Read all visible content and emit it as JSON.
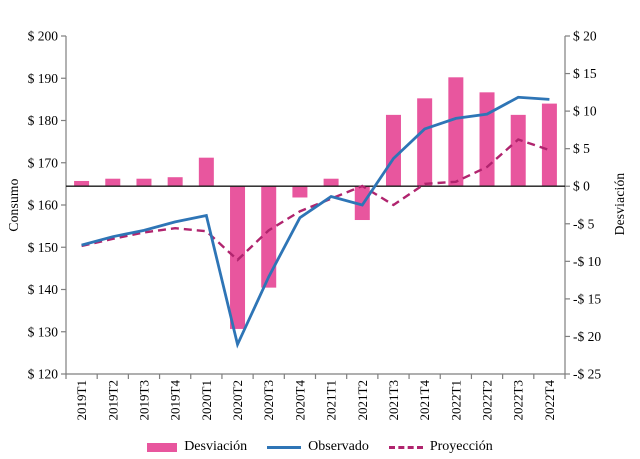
{
  "chart_data": {
    "type": "combo",
    "title": "",
    "categories": [
      "2019T1",
      "2019T2",
      "2019T3",
      "2019T4",
      "2020T1",
      "2020T2",
      "2020T3",
      "2020T4",
      "2021T1",
      "2021T2",
      "2021T3",
      "2021T4",
      "2022T1",
      "2022T2",
      "2022T3",
      "2022T4"
    ],
    "series": [
      {
        "name": "Desviación",
        "type": "bar",
        "axis": "right",
        "color": "#e8569e",
        "values": [
          0.7,
          1.0,
          1.0,
          1.2,
          3.8,
          -19.0,
          -13.5,
          -1.5,
          1.0,
          -4.5,
          9.5,
          11.7,
          14.5,
          12.5,
          9.5,
          11.0
        ]
      },
      {
        "name": "Observado",
        "type": "line",
        "axis": "left",
        "color": "#2e75b6",
        "values": [
          150.5,
          152.5,
          154.0,
          156.0,
          157.5,
          127.0,
          143.0,
          157.0,
          162.0,
          160.0,
          171.0,
          178.0,
          180.5,
          181.5,
          185.5,
          185.0
        ]
      },
      {
        "name": "Proyección",
        "type": "line-dashed",
        "axis": "left",
        "color": "#b0246e",
        "values": [
          150.3,
          152.0,
          153.5,
          154.5,
          153.8,
          147.0,
          154.0,
          158.5,
          161.5,
          164.5,
          160.0,
          165.0,
          165.5,
          169.0,
          175.5,
          173.0
        ]
      }
    ],
    "axes": {
      "left": {
        "label": "Consumo",
        "min": 120,
        "max": 200,
        "step": 10,
        "tick_labels": [
          "$ 200",
          "$ 190",
          "$ 180",
          "$ 170",
          "$ 160",
          "$ 150",
          "$ 140",
          "$ 130",
          "$ 120"
        ]
      },
      "right": {
        "label": "Desviación",
        "min": -25,
        "max": 20,
        "step": 5,
        "tick_labels": [
          "$ 20",
          "$ 15",
          "$ 10",
          "$ 5",
          "$ 0",
          "-$ 5",
          "-$ 10",
          "-$ 15",
          "-$ 20",
          "-$ 25"
        ]
      }
    },
    "baseline_right": 0,
    "grid": false,
    "legend_position": "bottom"
  },
  "legend": {
    "desviacion": "Desviación",
    "observado": "Observado",
    "proyeccion": "Proyección"
  },
  "colors": {
    "bar": "#e8569e",
    "observado": "#2e75b6",
    "proyeccion": "#b0246e",
    "axis": "#7f7f7f",
    "zero_line": "#1a1a1a",
    "text": "#000000"
  }
}
